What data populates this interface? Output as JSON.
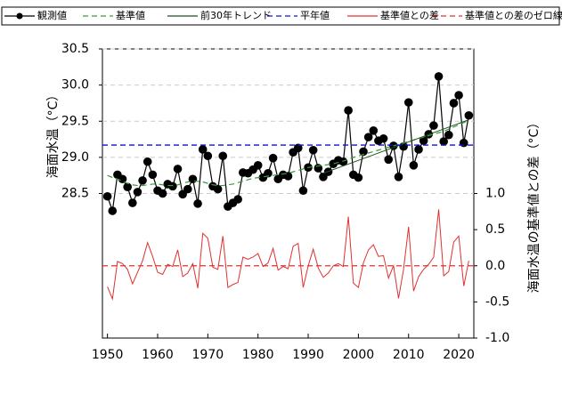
{
  "chart_data": {
    "type": "line",
    "y_label": "海面水温（°C）",
    "y2_label": "海面水温の基準値との差（°C）",
    "x": [
      1950,
      1951,
      1952,
      1953,
      1954,
      1955,
      1956,
      1957,
      1958,
      1959,
      1960,
      1961,
      1962,
      1963,
      1964,
      1965,
      1966,
      1967,
      1968,
      1969,
      1970,
      1971,
      1972,
      1973,
      1974,
      1975,
      1976,
      1977,
      1978,
      1979,
      1980,
      1981,
      1982,
      1983,
      1984,
      1985,
      1986,
      1987,
      1988,
      1989,
      1990,
      1991,
      1992,
      1993,
      1994,
      1995,
      1996,
      1997,
      1998,
      1999,
      2000,
      2001,
      2002,
      2003,
      2004,
      2005,
      2006,
      2007,
      2008,
      2009,
      2010,
      2011,
      2012,
      2013,
      2014,
      2015,
      2016,
      2017,
      2018,
      2019,
      2020,
      2021,
      2022
    ],
    "xlim": [
      1949,
      2023
    ],
    "xticks": [
      1950,
      1960,
      1970,
      1980,
      1990,
      2000,
      2010,
      2020
    ],
    "ylim": [
      26.5,
      30.5
    ],
    "yticks": [
      {
        "value": 28.5,
        "label": "28.5"
      },
      {
        "value": 29,
        "label": "29.0"
      },
      {
        "value": 29.5,
        "label": "29.5"
      },
      {
        "value": 30,
        "label": "30.0"
      },
      {
        "value": 30.5,
        "label": "30.5"
      }
    ],
    "y2lim": [
      -1.0,
      3.0
    ],
    "y2ticks": [
      {
        "value": -1,
        "label": "-1.0"
      },
      {
        "value": -0.5,
        "label": "-0.5"
      },
      {
        "value": 0,
        "label": "0.0"
      },
      {
        "value": 0.5,
        "label": "0.5"
      },
      {
        "value": 1,
        "label": "1.0"
      }
    ],
    "grid": true,
    "series": [
      {
        "name": "観測値",
        "color": "#000000",
        "style": "solid",
        "marker": true,
        "values": [
          28.46,
          28.26,
          28.76,
          28.7,
          28.59,
          28.37,
          28.52,
          28.68,
          28.94,
          28.76,
          28.54,
          28.5,
          28.63,
          28.6,
          28.84,
          28.49,
          28.56,
          28.7,
          28.36,
          29.11,
          29.02,
          28.6,
          28.56,
          29.02,
          28.32,
          28.37,
          28.42,
          28.79,
          28.78,
          28.83,
          28.89,
          28.72,
          28.78,
          28.99,
          28.7,
          28.76,
          28.74,
          29.07,
          29.13,
          28.54,
          28.86,
          29.1,
          28.85,
          28.73,
          28.8,
          28.91,
          28.96,
          28.94,
          29.65,
          28.76,
          28.72,
          29.08,
          29.28,
          29.37,
          29.23,
          29.26,
          28.97,
          29.16,
          28.73,
          29.15,
          29.76,
          28.89,
          29.11,
          29.23,
          29.32,
          29.44,
          30.12,
          29.22,
          29.31,
          29.75,
          29.86,
          29.2,
          29.58
        ]
      },
      {
        "name": "基準値",
        "color": "#3a9a3a",
        "style": "dashed",
        "values": [
          28.75,
          28.72,
          28.7,
          28.67,
          28.64,
          28.62,
          28.61,
          28.61,
          28.62,
          28.63,
          28.63,
          28.62,
          28.61,
          28.61,
          28.62,
          28.64,
          28.66,
          28.67,
          28.67,
          28.66,
          28.64,
          28.62,
          28.61,
          28.61,
          28.62,
          28.63,
          28.65,
          28.67,
          28.69,
          28.71,
          28.72,
          28.73,
          28.74,
          28.75,
          28.76,
          28.77,
          28.78,
          28.8,
          28.82,
          28.84,
          28.86,
          28.87,
          28.88,
          28.89,
          28.9,
          28.91,
          28.93,
          28.95,
          28.97,
          29.0,
          29.02,
          29.04,
          29.06,
          29.08,
          29.1,
          29.12,
          29.14,
          29.16,
          29.18,
          29.2,
          29.22,
          29.24,
          29.26,
          29.28,
          29.3,
          29.32,
          29.34,
          29.36,
          29.39,
          29.42,
          29.45,
          29.48,
          29.51
        ]
      },
      {
        "name": "前30年トレンド",
        "color": "#1f4f1f",
        "style": "solid",
        "x": [
          1993,
          2022
        ],
        "values": [
          28.78,
          29.52
        ]
      },
      {
        "name": "平年値",
        "color": "#1010d0",
        "style": "dashed",
        "hline": 29.17
      },
      {
        "name": "基準値との差",
        "color": "#e03030",
        "style": "solid",
        "axis": "y2",
        "values": [
          -0.29,
          -0.46,
          0.06,
          0.03,
          -0.05,
          -0.25,
          -0.09,
          0.07,
          0.32,
          0.13,
          -0.09,
          -0.12,
          0.02,
          -0.01,
          0.22,
          -0.15,
          -0.1,
          0.03,
          -0.31,
          0.45,
          0.38,
          -0.02,
          -0.05,
          0.41,
          -0.3,
          -0.26,
          -0.23,
          0.12,
          0.09,
          0.12,
          0.17,
          -0.01,
          0.04,
          0.24,
          -0.06,
          -0.01,
          -0.04,
          0.27,
          0.31,
          -0.3,
          0.0,
          0.23,
          -0.03,
          -0.16,
          -0.1,
          0.0,
          0.03,
          -0.01,
          0.68,
          -0.24,
          -0.3,
          0.04,
          0.22,
          0.29,
          0.13,
          0.14,
          -0.17,
          0.0,
          -0.45,
          -0.05,
          0.54,
          -0.35,
          -0.15,
          -0.05,
          0.02,
          0.12,
          0.78,
          -0.14,
          -0.08,
          0.33,
          0.41,
          -0.28,
          0.07
        ]
      },
      {
        "name": "基準値との差のゼロ線",
        "color": "#e03030",
        "style": "dashed",
        "axis": "y2",
        "hline": 0
      }
    ]
  }
}
